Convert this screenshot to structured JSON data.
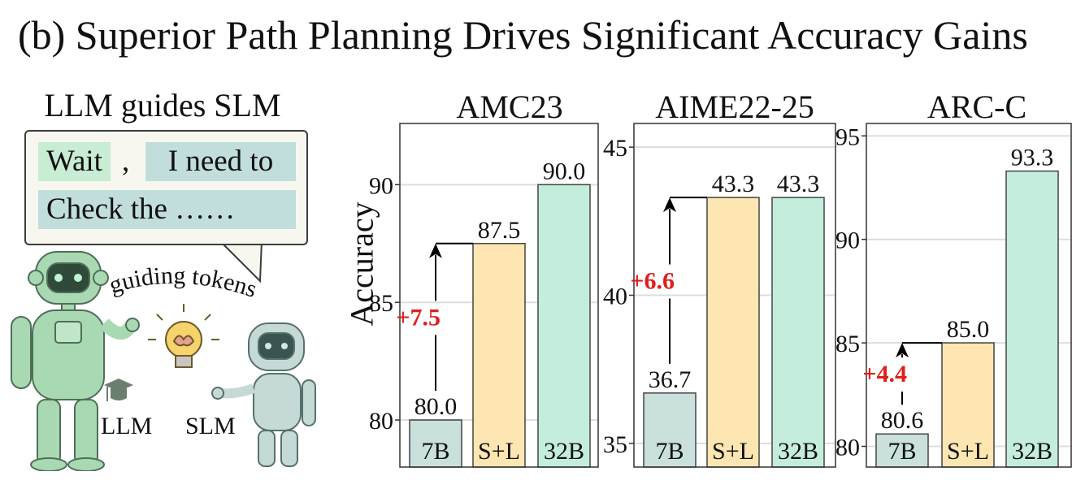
{
  "title": "(b) Superior Path Planning Drives Significant Accuracy Gains",
  "illustration": {
    "panel_title": "LLM guides SLM",
    "tokens": {
      "first": "Wait",
      "separator": ",",
      "second": "I need to",
      "third": "Check the ……"
    },
    "guiding_label": "guiding tokens",
    "llm_label": "LLM",
    "slm_label": "SLM"
  },
  "ylabel": "Accuracy",
  "colors": {
    "7B": "#c9e0dd",
    "S+L": "#fde6b1",
    "32B": "#c4eedb",
    "arrow": "#000000",
    "gain": "#e0201b"
  },
  "chart_data": [
    {
      "type": "bar",
      "title": "AMC23",
      "ylabel": "Accuracy",
      "categories": [
        "7B",
        "S+L",
        "32B"
      ],
      "values": [
        80.0,
        87.5,
        90.0
      ],
      "value_labels": [
        "80.0",
        "87.5",
        "90.0"
      ],
      "ylim": [
        78.0,
        92.6
      ],
      "yticks": [
        80,
        85,
        90
      ],
      "ytick_labels": [
        "80",
        "85",
        "90"
      ],
      "gain_label": "+7.5",
      "grid": true
    },
    {
      "type": "bar",
      "title": "AIME22-25",
      "ylabel": "",
      "categories": [
        "7B",
        "S+L",
        "32B"
      ],
      "values": [
        36.7,
        43.3,
        43.3
      ],
      "value_labels": [
        "36.7",
        "43.3",
        "43.3"
      ],
      "ylim": [
        34.2,
        45.8
      ],
      "yticks": [
        35,
        40,
        45
      ],
      "ytick_labels": [
        "35",
        "40",
        "45"
      ],
      "gain_label": "+6.6",
      "grid": true
    },
    {
      "type": "bar",
      "title": "ARC-C",
      "ylabel": "",
      "categories": [
        "7B",
        "S+L",
        "32B"
      ],
      "values": [
        80.6,
        85.0,
        93.3
      ],
      "value_labels": [
        "80.6",
        "85.0",
        "93.3"
      ],
      "ylim": [
        79.0,
        95.6
      ],
      "yticks": [
        80,
        85,
        90,
        95
      ],
      "ytick_labels": [
        "80",
        "85",
        "90",
        "95"
      ],
      "gain_label": "+4.4",
      "grid": true
    }
  ]
}
